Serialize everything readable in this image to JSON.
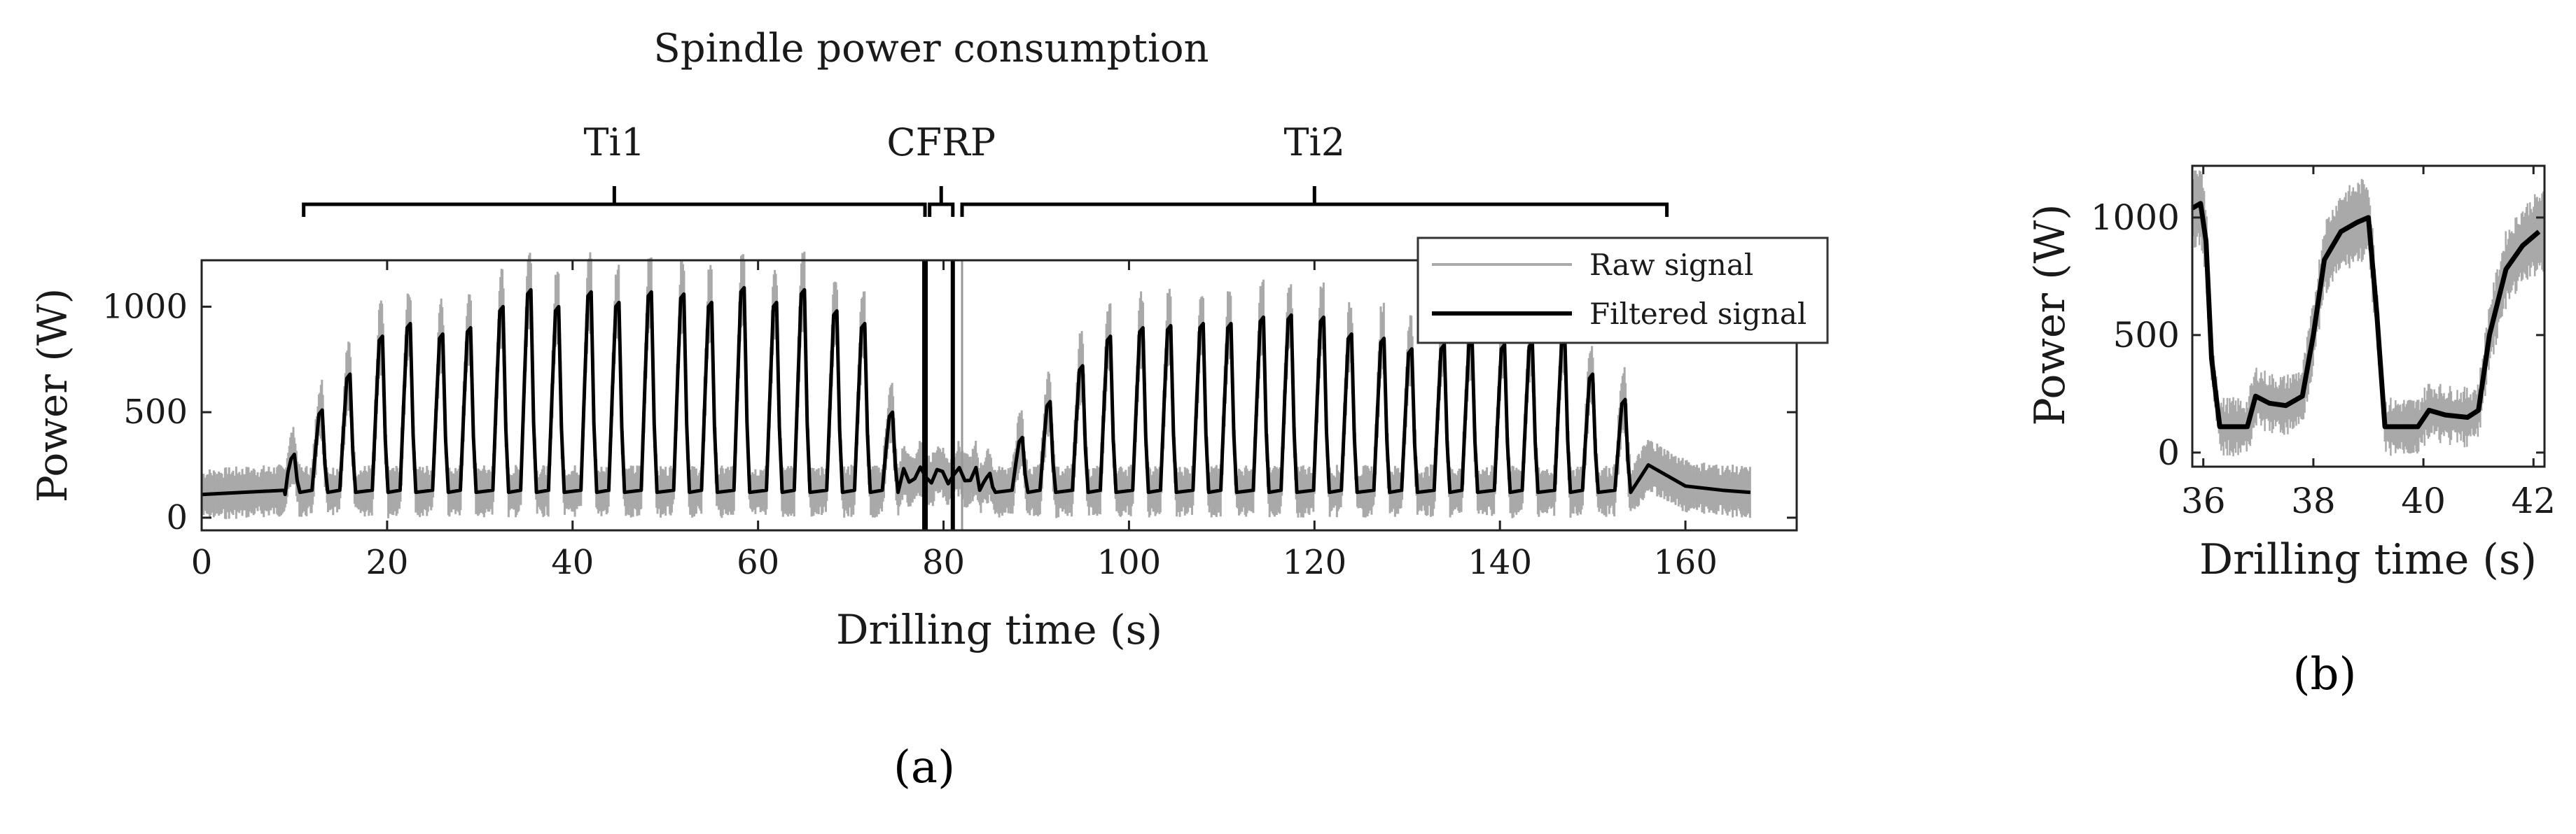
{
  "chart_data": [
    {
      "id": "a",
      "type": "line",
      "title": "Spindle power consumption",
      "xlabel": "Drilling time (s)",
      "ylabel": "Power (W)",
      "xlim": [
        0,
        172
      ],
      "ylim": [
        -60,
        1220
      ],
      "xticks": [
        0,
        20,
        40,
        60,
        80,
        100,
        120,
        140,
        160
      ],
      "yticks": [
        0,
        500,
        1000
      ],
      "legend": {
        "position": "top-right",
        "raw_label": "Raw signal",
        "filtered_label": "Filtered signal"
      },
      "panel_label": "(a)",
      "phases": [
        {
          "name": "Ti1",
          "start": 11,
          "end": 78
        },
        {
          "name": "CFRP",
          "start": 78.5,
          "end": 81
        },
        {
          "name": "Ti2",
          "start": 82,
          "end": 158
        }
      ],
      "markers": [
        78,
        81
      ],
      "baseline": 110,
      "peaks": [
        {
          "t": 10,
          "p": 300
        },
        {
          "t": 13,
          "p": 510
        },
        {
          "t": 16,
          "p": 680
        },
        {
          "t": 19.5,
          "p": 860
        },
        {
          "t": 22.5,
          "p": 920
        },
        {
          "t": 26,
          "p": 870
        },
        {
          "t": 29,
          "p": 900
        },
        {
          "t": 32.5,
          "p": 1000
        },
        {
          "t": 35.5,
          "p": 1080
        },
        {
          "t": 38.5,
          "p": 1000
        },
        {
          "t": 42,
          "p": 1070
        },
        {
          "t": 45,
          "p": 1020
        },
        {
          "t": 48.5,
          "p": 1070
        },
        {
          "t": 52,
          "p": 1060
        },
        {
          "t": 55,
          "p": 1020
        },
        {
          "t": 58.5,
          "p": 1090
        },
        {
          "t": 62,
          "p": 1020
        },
        {
          "t": 65,
          "p": 1080
        },
        {
          "t": 68.5,
          "p": 980
        },
        {
          "t": 71.5,
          "p": 920
        },
        {
          "t": 74.5,
          "p": 500
        },
        {
          "t": 85,
          "p": 210
        },
        {
          "t": 88.5,
          "p": 380
        },
        {
          "t": 91.5,
          "p": 550
        },
        {
          "t": 95,
          "p": 720
        },
        {
          "t": 98,
          "p": 860
        },
        {
          "t": 101.5,
          "p": 900
        },
        {
          "t": 104.5,
          "p": 910
        },
        {
          "t": 108,
          "p": 920
        },
        {
          "t": 111,
          "p": 920
        },
        {
          "t": 114.5,
          "p": 950
        },
        {
          "t": 117.5,
          "p": 960
        },
        {
          "t": 121,
          "p": 950
        },
        {
          "t": 124,
          "p": 870
        },
        {
          "t": 127.5,
          "p": 850
        },
        {
          "t": 130.5,
          "p": 800
        },
        {
          "t": 134,
          "p": 820
        },
        {
          "t": 137,
          "p": 840
        },
        {
          "t": 140.5,
          "p": 820
        },
        {
          "t": 143.5,
          "p": 830
        },
        {
          "t": 147,
          "p": 850
        },
        {
          "t": 150,
          "p": 680
        },
        {
          "t": 153.5,
          "p": 560
        }
      ],
      "tail": [
        {
          "t": 156,
          "p": 250
        },
        {
          "t": 160,
          "p": 150
        },
        {
          "t": 164,
          "p": 130
        },
        {
          "t": 167,
          "p": 120
        }
      ]
    },
    {
      "id": "b",
      "type": "line",
      "xlabel": "Drilling time (s)",
      "ylabel": "Power (W)",
      "xlim": [
        35.8,
        42.2
      ],
      "ylim": [
        -60,
        1220
      ],
      "xticks": [
        36,
        38,
        40,
        42
      ],
      "yticks": [
        0,
        500,
        1000
      ],
      "panel_label": "(b)",
      "points": [
        {
          "t": 35.8,
          "p": 1040
        },
        {
          "t": 35.95,
          "p": 1060
        },
        {
          "t": 36.05,
          "p": 900
        },
        {
          "t": 36.15,
          "p": 400
        },
        {
          "t": 36.3,
          "p": 110
        },
        {
          "t": 36.8,
          "p": 110
        },
        {
          "t": 36.95,
          "p": 240
        },
        {
          "t": 37.2,
          "p": 210
        },
        {
          "t": 37.5,
          "p": 200
        },
        {
          "t": 37.8,
          "p": 240
        },
        {
          "t": 38.0,
          "p": 500
        },
        {
          "t": 38.2,
          "p": 820
        },
        {
          "t": 38.5,
          "p": 940
        },
        {
          "t": 38.8,
          "p": 980
        },
        {
          "t": 39.0,
          "p": 1000
        },
        {
          "t": 39.15,
          "p": 600
        },
        {
          "t": 39.3,
          "p": 110
        },
        {
          "t": 39.9,
          "p": 110
        },
        {
          "t": 40.1,
          "p": 180
        },
        {
          "t": 40.4,
          "p": 160
        },
        {
          "t": 40.8,
          "p": 150
        },
        {
          "t": 41.0,
          "p": 180
        },
        {
          "t": 41.2,
          "p": 500
        },
        {
          "t": 41.5,
          "p": 780
        },
        {
          "t": 41.8,
          "p": 880
        },
        {
          "t": 42.1,
          "p": 940
        }
      ]
    }
  ]
}
